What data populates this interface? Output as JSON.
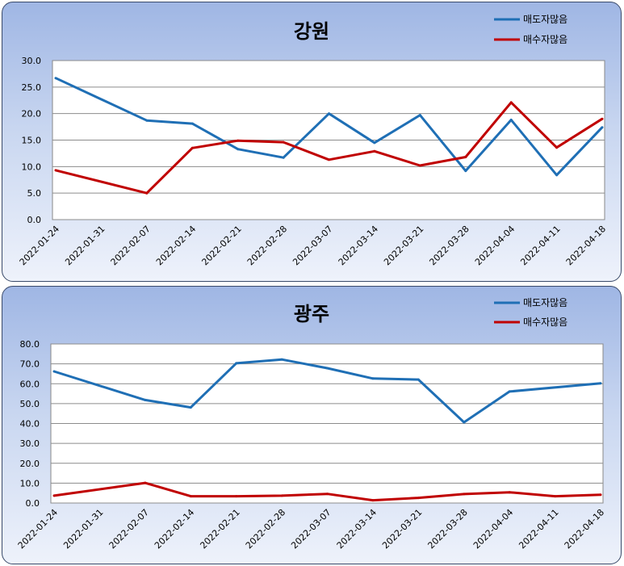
{
  "chart_data": [
    {
      "type": "line",
      "title": "강원",
      "x": [
        "2022-01-24",
        "2022-01-31",
        "2022-02-07",
        "2022-02-14",
        "2022-02-21",
        "2022-02-28",
        "2022-03-07",
        "2022-03-14",
        "2022-03-21",
        "2022-03-28",
        "2022-04-04",
        "2022-04-11",
        "2022-04-18"
      ],
      "series": [
        {
          "name": "매도자많음",
          "color": "#1f6fb5",
          "values": [
            26.7,
            null,
            18.7,
            18.1,
            13.3,
            11.7,
            20.0,
            14.5,
            19.7,
            9.2,
            18.8,
            8.4,
            17.4
          ]
        },
        {
          "name": "매수자많음",
          "color": "#c00000",
          "values": [
            9.3,
            null,
            5.0,
            13.5,
            14.9,
            14.6,
            11.3,
            12.9,
            10.2,
            11.8,
            22.1,
            13.6,
            19.0
          ]
        }
      ],
      "yticks": [
        "0.0",
        "5.0",
        "10.0",
        "15.0",
        "20.0",
        "25.0",
        "30.0"
      ],
      "ylim": [
        0,
        30
      ],
      "grid": true,
      "legend": "top-right"
    },
    {
      "type": "line",
      "title": "광주",
      "x": [
        "2022-01-24",
        "2022-01-31",
        "2022-02-07",
        "2022-02-14",
        "2022-02-21",
        "2022-02-28",
        "2022-03-07",
        "2022-03-14",
        "2022-03-21",
        "2022-03-28",
        "2022-04-04",
        "2022-04-11",
        "2022-04-18"
      ],
      "series": [
        {
          "name": "매도자많음",
          "color": "#1f6fb5",
          "values": [
            66.2,
            null,
            51.8,
            48.1,
            70.3,
            72.2,
            67.8,
            62.6,
            62.1,
            40.6,
            56.1,
            null,
            60.2
          ]
        },
        {
          "name": "매수자많음",
          "color": "#c00000",
          "values": [
            3.7,
            null,
            10.1,
            3.4,
            3.4,
            3.7,
            4.6,
            1.4,
            2.6,
            4.5,
            5.4,
            3.4,
            4.2
          ]
        }
      ],
      "yticks": [
        "0.0",
        "10.0",
        "20.0",
        "30.0",
        "40.0",
        "50.0",
        "60.0",
        "70.0",
        "80.0"
      ],
      "ylim": [
        0,
        80
      ],
      "grid": true,
      "legend": "top-right"
    }
  ]
}
